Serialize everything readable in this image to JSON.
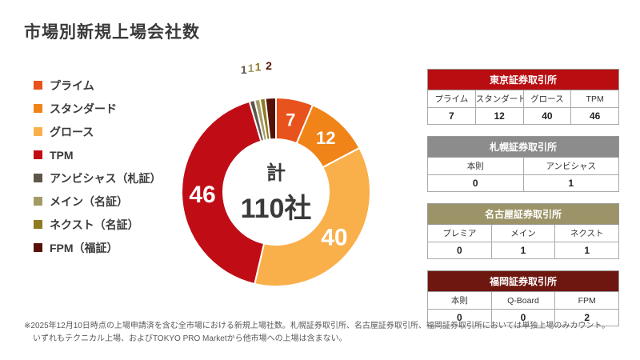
{
  "page": {
    "title": "市場別新規上場会社数",
    "footnote_line1": "※2025年12月10日時点の上場申請済を含む全市場における新規上場社数。札幌証券取引所、名古屋証券取引所、福岡証券取引所においては単独上場のみカウント。",
    "footnote_line2": "いずれもテクニカル上場、およびTOKYO PRO Marketから他市場への上場は含まない。"
  },
  "legend": {
    "items": [
      {
        "label": "プライム",
        "color": "#E8521C"
      },
      {
        "label": "スタンダード",
        "color": "#F08418"
      },
      {
        "label": "グロース",
        "color": "#F9B04A"
      },
      {
        "label": "TPM",
        "color": "#C00D15"
      },
      {
        "label": "アンビシャス（札証）",
        "color": "#5F564A"
      },
      {
        "label": "メイン（名証）",
        "color": "#A29B66"
      },
      {
        "label": "ネクスト（名証）",
        "color": "#8F7B22"
      },
      {
        "label": "FPM（福証）",
        "color": "#571208"
      }
    ]
  },
  "chart_data": {
    "type": "pie",
    "subtype": "donut",
    "title": "市場別新規上場会社数",
    "center_label_top": "計",
    "center_label_value": "110社",
    "total": 110,
    "categories": [
      "プライム",
      "スタンダード",
      "グロース",
      "TPM",
      "アンビシャス（札証）",
      "メイン（名証）",
      "ネクスト（名証）",
      "FPM（福証）"
    ],
    "values": [
      7,
      12,
      40,
      46,
      1,
      1,
      1,
      2
    ],
    "colors": [
      "#E8521C",
      "#F08418",
      "#F9B04A",
      "#C00D15",
      "#5F564A",
      "#A29B66",
      "#8F7B22",
      "#571208"
    ],
    "legend_position": "left",
    "start_angle_deg": 0,
    "direction": "clockwise"
  },
  "tables": [
    {
      "title": "東京証券取引所",
      "header_color": "#B80E12",
      "columns": [
        "プライム",
        "スタンダード",
        "グロース",
        "TPM"
      ],
      "values": [
        "7",
        "12",
        "40",
        "46"
      ]
    },
    {
      "title": "札幌証券取引所",
      "header_color": "#8C8C8C",
      "columns": [
        "本則",
        "アンビシャス"
      ],
      "values": [
        "0",
        "1"
      ]
    },
    {
      "title": "名古屋証券取引所",
      "header_color": "#9C9468",
      "columns": [
        "プレミア",
        "メイン",
        "ネクスト"
      ],
      "values": [
        "0",
        "1",
        "1"
      ]
    },
    {
      "title": "福岡証券取引所",
      "header_color": "#6E1710",
      "columns": [
        "本則",
        "Q-Board",
        "FPM"
      ],
      "values": [
        "0",
        "0",
        "2"
      ]
    }
  ]
}
